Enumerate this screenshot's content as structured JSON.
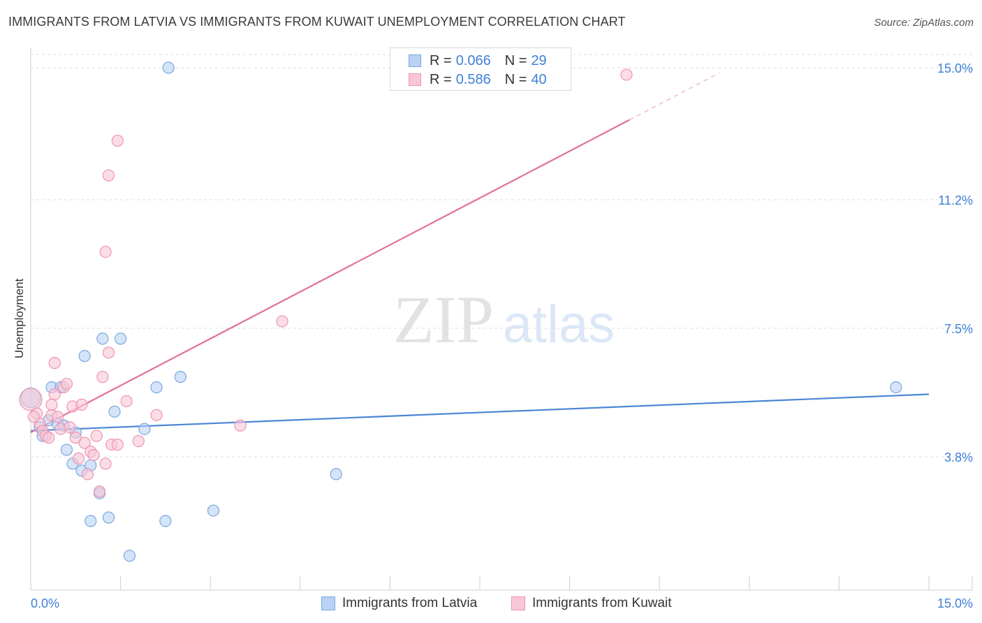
{
  "header": {
    "title": "IMMIGRANTS FROM LATVIA VS IMMIGRANTS FROM KUWAIT UNEMPLOYMENT CORRELATION CHART",
    "source": "Source: ZipAtlas.com"
  },
  "watermark": {
    "zip": "ZIP",
    "atlas": "atlas"
  },
  "legend": {
    "rows": [
      {
        "r_label": "R =",
        "r_value": "0.066",
        "n_label": "N =",
        "n_value": "29",
        "fill": "#b9d2f3",
        "stroke": "#7aa7e0"
      },
      {
        "r_label": "R =",
        "r_value": "0.586",
        "n_label": "N =",
        "n_value": "40",
        "fill": "#f9c6d6",
        "stroke": "#ee94b2"
      }
    ]
  },
  "bottom_legend": [
    {
      "label": "Immigrants from Latvia",
      "fill": "#b9d2f3",
      "stroke": "#7aa7e0"
    },
    {
      "label": "Immigrants from Kuwait",
      "fill": "#f9c6d6",
      "stroke": "#ee94b2"
    }
  ],
  "chart_data": {
    "type": "scatter",
    "title": "IMMIGRANTS FROM LATVIA VS IMMIGRANTS FROM KUWAIT UNEMPLOYMENT CORRELATION CHART",
    "xlabel": "",
    "ylabel": "Unemployment",
    "xlim": [
      0,
      15
    ],
    "ylim": [
      0,
      15.4
    ],
    "x_tick_labels": [
      "0.0%",
      "15.0%"
    ],
    "y_ticks": [
      {
        "value": 3.8,
        "label": "3.8%"
      },
      {
        "value": 7.5,
        "label": "7.5%"
      },
      {
        "value": 11.2,
        "label": "11.2%"
      },
      {
        "value": 15.0,
        "label": "15.0%"
      }
    ],
    "grid": "horizontal dashed",
    "legend_placement": "top-center",
    "series": [
      {
        "name": "Immigrants from Latvia",
        "color": "#4a86d6",
        "fill": "#b9d2f3",
        "points": [
          [
            0.0,
            5.5,
            14
          ],
          [
            0.15,
            4.65,
            8
          ],
          [
            0.2,
            4.4,
            8
          ],
          [
            0.3,
            4.85,
            8
          ],
          [
            0.35,
            5.8,
            8
          ],
          [
            0.45,
            4.75,
            8
          ],
          [
            0.5,
            5.8,
            8
          ],
          [
            0.55,
            4.7,
            8
          ],
          [
            0.6,
            4.0,
            8
          ],
          [
            0.75,
            4.5,
            8
          ],
          [
            0.7,
            3.6,
            8
          ],
          [
            0.85,
            3.4,
            8
          ],
          [
            1.0,
            3.55,
            8
          ],
          [
            1.15,
            2.75,
            8
          ],
          [
            1.0,
            1.95,
            8
          ],
          [
            1.3,
            2.05,
            8
          ],
          [
            0.9,
            6.7,
            8
          ],
          [
            1.2,
            7.2,
            8
          ],
          [
            1.5,
            7.2,
            8
          ],
          [
            1.4,
            5.1,
            8
          ],
          [
            1.9,
            4.6,
            8
          ],
          [
            2.1,
            5.8,
            8
          ],
          [
            2.5,
            6.1,
            8
          ],
          [
            2.25,
            1.95,
            8
          ],
          [
            3.05,
            2.25,
            8
          ],
          [
            1.65,
            0.95,
            8
          ],
          [
            2.3,
            15.0,
            8
          ],
          [
            5.1,
            3.3,
            8
          ],
          [
            14.45,
            5.8,
            8
          ]
        ]
      },
      {
        "name": "Immigrants from Kuwait",
        "color": "#e2709a",
        "fill": "#f9c6d6",
        "points": [
          [
            0.0,
            5.45,
            16
          ],
          [
            0.1,
            5.05,
            8
          ],
          [
            0.15,
            4.75,
            8
          ],
          [
            0.2,
            4.55,
            8
          ],
          [
            0.25,
            4.4,
            8
          ],
          [
            0.3,
            4.35,
            8
          ],
          [
            0.35,
            5.0,
            8
          ],
          [
            0.35,
            5.3,
            8
          ],
          [
            0.4,
            5.6,
            8
          ],
          [
            0.45,
            4.95,
            8
          ],
          [
            0.5,
            4.6,
            8
          ],
          [
            0.4,
            6.5,
            8
          ],
          [
            0.55,
            5.8,
            8
          ],
          [
            0.65,
            4.65,
            8
          ],
          [
            0.7,
            5.25,
            8
          ],
          [
            0.75,
            4.35,
            8
          ],
          [
            0.8,
            3.75,
            8
          ],
          [
            0.85,
            5.3,
            8
          ],
          [
            0.9,
            4.2,
            8
          ],
          [
            0.95,
            3.3,
            8
          ],
          [
            1.0,
            3.95,
            8
          ],
          [
            1.05,
            3.85,
            8
          ],
          [
            1.1,
            4.4,
            8
          ],
          [
            1.15,
            2.8,
            8
          ],
          [
            1.25,
            3.6,
            8
          ],
          [
            1.35,
            4.15,
            8
          ],
          [
            1.45,
            4.15,
            8
          ],
          [
            1.2,
            6.1,
            8
          ],
          [
            1.3,
            6.8,
            8
          ],
          [
            1.6,
            5.4,
            8
          ],
          [
            1.8,
            4.25,
            8
          ],
          [
            2.1,
            5.0,
            8
          ],
          [
            3.5,
            4.7,
            8
          ],
          [
            4.2,
            7.7,
            8
          ],
          [
            1.25,
            9.7,
            8
          ],
          [
            1.3,
            11.9,
            8
          ],
          [
            1.45,
            12.9,
            8
          ],
          [
            9.95,
            14.8,
            8
          ],
          [
            0.05,
            4.95,
            8
          ],
          [
            0.6,
            5.9,
            8
          ]
        ]
      }
    ],
    "trendlines": [
      {
        "series": "Immigrants from Latvia",
        "x": [
          0,
          15
        ],
        "y": [
          4.55,
          5.6
        ]
      },
      {
        "series": "Immigrants from Kuwait",
        "x": [
          0,
          10
        ],
        "y": [
          4.5,
          13.5
        ],
        "dashed_extension_to_x": 11.5
      }
    ]
  }
}
